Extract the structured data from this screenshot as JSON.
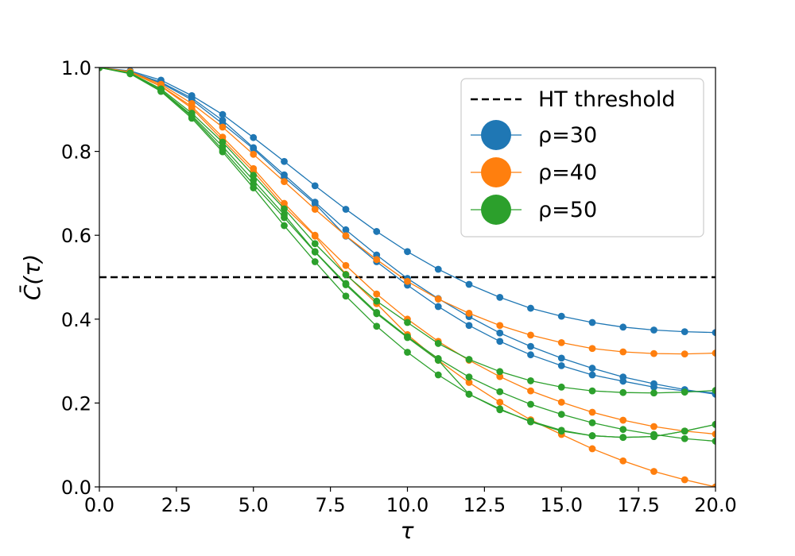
{
  "chart_data": {
    "type": "line",
    "xlabel": "τ",
    "ylabel": "C̄(τ)",
    "xlim": [
      0,
      20
    ],
    "ylim": [
      0,
      1
    ],
    "x_ticks": [
      "0.0",
      "2.5",
      "5.0",
      "7.5",
      "10.0",
      "12.5",
      "15.0",
      "17.5",
      "20.0"
    ],
    "y_ticks": [
      "0.0",
      "0.2",
      "0.4",
      "0.6",
      "0.8",
      "1.0"
    ],
    "grid": false,
    "legend_position": "top-right",
    "threshold": {
      "name": "HT threshold",
      "y": 0.5,
      "style": "dashed",
      "color": "#000000"
    },
    "x": [
      0,
      1,
      2,
      3,
      4,
      5,
      6,
      7,
      8,
      9,
      10,
      11,
      12,
      13,
      14,
      15,
      16,
      17,
      18,
      19,
      20
    ],
    "groups": [
      {
        "legend": "ρ=30",
        "color": "#1f77b4",
        "lines": [
          [
            1.0,
            0.992,
            0.97,
            0.933,
            0.888,
            0.833,
            0.776,
            0.718,
            0.662,
            0.609,
            0.561,
            0.519,
            0.483,
            0.452,
            0.426,
            0.407,
            0.392,
            0.381,
            0.374,
            0.37,
            0.368
          ],
          [
            1.0,
            0.99,
            0.965,
            0.927,
            0.874,
            0.809,
            0.744,
            0.679,
            0.613,
            0.553,
            0.497,
            0.449,
            0.406,
            0.367,
            0.335,
            0.307,
            0.283,
            0.262,
            0.246,
            0.232,
            0.221
          ],
          [
            1.0,
            0.99,
            0.963,
            0.923,
            0.866,
            0.806,
            0.738,
            0.675,
            0.598,
            0.537,
            0.481,
            0.43,
            0.385,
            0.347,
            0.315,
            0.289,
            0.267,
            0.252,
            0.238,
            0.229,
            0.224
          ]
        ]
      },
      {
        "legend": "ρ=40",
        "color": "#ff7f0e",
        "lines": [
          [
            1.0,
            0.99,
            0.96,
            0.914,
            0.858,
            0.793,
            0.728,
            0.662,
            0.599,
            0.542,
            0.49,
            0.448,
            0.414,
            0.385,
            0.362,
            0.344,
            0.33,
            0.322,
            0.318,
            0.317,
            0.319
          ],
          [
            1.0,
            0.989,
            0.956,
            0.907,
            0.834,
            0.759,
            0.676,
            0.6,
            0.528,
            0.46,
            0.4,
            0.347,
            0.302,
            0.263,
            0.229,
            0.202,
            0.178,
            0.159,
            0.144,
            0.133,
            0.126
          ],
          [
            1.0,
            0.989,
            0.955,
            0.903,
            0.827,
            0.752,
            0.668,
            0.598,
            0.507,
            0.437,
            0.363,
            0.302,
            0.249,
            0.202,
            0.16,
            0.125,
            0.091,
            0.062,
            0.037,
            0.017,
            0.0
          ]
        ]
      },
      {
        "legend": "ρ=50",
        "color": "#2ca02c",
        "lines": [
          [
            1.0,
            0.987,
            0.949,
            0.891,
            0.822,
            0.743,
            0.663,
            0.58,
            0.506,
            0.443,
            0.392,
            0.342,
            0.304,
            0.275,
            0.253,
            0.238,
            0.229,
            0.225,
            0.224,
            0.226,
            0.23
          ],
          [
            1.0,
            0.986,
            0.946,
            0.886,
            0.812,
            0.731,
            0.649,
            0.561,
            0.485,
            0.416,
            0.358,
            0.306,
            0.262,
            0.227,
            0.197,
            0.173,
            0.153,
            0.137,
            0.125,
            0.115,
            0.109
          ],
          [
            1.0,
            0.986,
            0.945,
            0.883,
            0.804,
            0.722,
            0.642,
            0.56,
            0.482,
            0.413,
            0.356,
            0.302,
            0.221,
            0.186,
            0.155,
            0.133,
            0.122,
            0.118,
            0.12,
            0.133,
            0.149
          ],
          [
            1.0,
            0.985,
            0.943,
            0.879,
            0.799,
            0.713,
            0.623,
            0.537,
            0.455,
            0.383,
            0.321,
            0.267,
            0.221,
            0.184,
            0.157,
            0.135,
            0.122,
            0.118,
            0.12,
            0.133,
            0.149
          ]
        ]
      }
    ]
  }
}
